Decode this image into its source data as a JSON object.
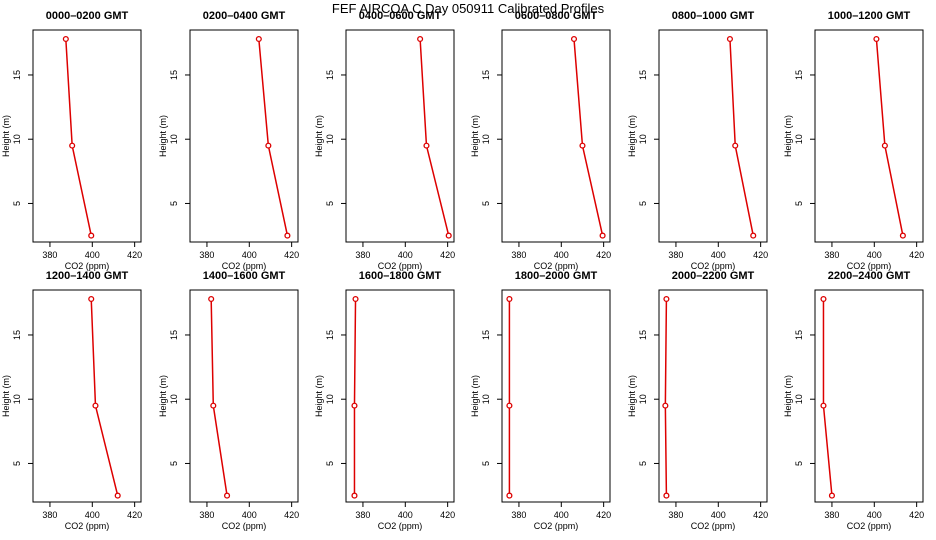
{
  "figure": {
    "title": "FEF AIRCOA C  Day 050911  Calibrated Profiles"
  },
  "style": {
    "line_color": "#dd0000",
    "marker_color": "#dd0000",
    "axis_color": "#000000"
  },
  "chart_data": [
    {
      "type": "line",
      "title": "0000–0200 GMT",
      "xlabel": "CO2 (ppm)",
      "ylabel": "Height (m)",
      "xlim": [
        372,
        423
      ],
      "ylim": [
        2,
        18.5
      ],
      "xticks": [
        380,
        400,
        420
      ],
      "yticks": [
        5,
        10,
        15
      ],
      "series": [
        {
          "x": [
            387.5,
            390.5,
            399.5
          ],
          "y": [
            17.8,
            9.5,
            2.5
          ]
        }
      ]
    },
    {
      "type": "line",
      "title": "0200–0400 GMT",
      "xlabel": "CO2 (ppm)",
      "ylabel": "Height (m)",
      "xlim": [
        372,
        423
      ],
      "ylim": [
        2,
        18.5
      ],
      "xticks": [
        380,
        400,
        420
      ],
      "yticks": [
        5,
        10,
        15
      ],
      "series": [
        {
          "x": [
            404.5,
            409,
            418
          ],
          "y": [
            17.8,
            9.5,
            2.5
          ]
        }
      ]
    },
    {
      "type": "line",
      "title": "0400–0600 GMT",
      "xlabel": "CO2 (ppm)",
      "ylabel": "Height (m)",
      "xlim": [
        372,
        423
      ],
      "ylim": [
        2,
        18.5
      ],
      "xticks": [
        380,
        400,
        420
      ],
      "yticks": [
        5,
        10,
        15
      ],
      "series": [
        {
          "x": [
            407,
            410,
            420.5
          ],
          "y": [
            17.8,
            9.5,
            2.5
          ]
        }
      ]
    },
    {
      "type": "line",
      "title": "0600–0800 GMT",
      "xlabel": "CO2 (ppm)",
      "ylabel": "Height (m)",
      "xlim": [
        372,
        423
      ],
      "ylim": [
        2,
        18.5
      ],
      "xticks": [
        380,
        400,
        420
      ],
      "yticks": [
        5,
        10,
        15
      ],
      "series": [
        {
          "x": [
            406,
            410,
            419.5
          ],
          "y": [
            17.8,
            9.5,
            2.5
          ]
        }
      ]
    },
    {
      "type": "line",
      "title": "0800–1000 GMT",
      "xlabel": "CO2 (ppm)",
      "ylabel": "Height (m)",
      "xlim": [
        372,
        423
      ],
      "ylim": [
        2,
        18.5
      ],
      "xticks": [
        380,
        400,
        420
      ],
      "yticks": [
        5,
        10,
        15
      ],
      "series": [
        {
          "x": [
            405.5,
            408,
            416.5
          ],
          "y": [
            17.8,
            9.5,
            2.5
          ]
        }
      ]
    },
    {
      "type": "line",
      "title": "1000–1200 GMT",
      "xlabel": "CO2 (ppm)",
      "ylabel": "Height (m)",
      "xlim": [
        372,
        423
      ],
      "ylim": [
        2,
        18.5
      ],
      "xticks": [
        380,
        400,
        420
      ],
      "yticks": [
        5,
        10,
        15
      ],
      "series": [
        {
          "x": [
            401,
            405,
            413.5
          ],
          "y": [
            17.8,
            9.5,
            2.5
          ]
        }
      ]
    },
    {
      "type": "line",
      "title": "1200–1400 GMT",
      "xlabel": "CO2 (ppm)",
      "ylabel": "Height (m)",
      "xlim": [
        372,
        423
      ],
      "ylim": [
        2,
        18.5
      ],
      "xticks": [
        380,
        400,
        420
      ],
      "yticks": [
        5,
        10,
        15
      ],
      "series": [
        {
          "x": [
            399.5,
            401.5,
            412
          ],
          "y": [
            17.8,
            9.5,
            2.5
          ]
        }
      ]
    },
    {
      "type": "line",
      "title": "1400–1600 GMT",
      "xlabel": "CO2 (ppm)",
      "ylabel": "Height (m)",
      "xlim": [
        372,
        423
      ],
      "ylim": [
        2,
        18.5
      ],
      "xticks": [
        380,
        400,
        420
      ],
      "yticks": [
        5,
        10,
        15
      ],
      "series": [
        {
          "x": [
            382,
            383,
            389.5
          ],
          "y": [
            17.8,
            9.5,
            2.5
          ]
        }
      ]
    },
    {
      "type": "line",
      "title": "1600–1800 GMT",
      "xlabel": "CO2 (ppm)",
      "ylabel": "Height (m)",
      "xlim": [
        372,
        423
      ],
      "ylim": [
        2,
        18.5
      ],
      "xticks": [
        380,
        400,
        420
      ],
      "yticks": [
        5,
        10,
        15
      ],
      "series": [
        {
          "x": [
            376.5,
            376,
            376
          ],
          "y": [
            17.8,
            9.5,
            2.5
          ]
        }
      ]
    },
    {
      "type": "line",
      "title": "1800–2000 GMT",
      "xlabel": "CO2 (ppm)",
      "ylabel": "Height (m)",
      "xlim": [
        372,
        423
      ],
      "ylim": [
        2,
        18.5
      ],
      "xticks": [
        380,
        400,
        420
      ],
      "yticks": [
        5,
        10,
        15
      ],
      "series": [
        {
          "x": [
            375.5,
            375.5,
            375.5
          ],
          "y": [
            17.8,
            9.5,
            2.5
          ]
        }
      ]
    },
    {
      "type": "line",
      "title": "2000–2200 GMT",
      "xlabel": "CO2 (ppm)",
      "ylabel": "Height (m)",
      "xlim": [
        372,
        423
      ],
      "ylim": [
        2,
        18.5
      ],
      "xticks": [
        380,
        400,
        420
      ],
      "yticks": [
        5,
        10,
        15
      ],
      "series": [
        {
          "x": [
            375.5,
            375,
            375.5
          ],
          "y": [
            17.8,
            9.5,
            2.5
          ]
        }
      ]
    },
    {
      "type": "line",
      "title": "2200–2400 GMT",
      "xlabel": "CO2 (ppm)",
      "ylabel": "Height (m)",
      "xlim": [
        372,
        423
      ],
      "ylim": [
        2,
        18.5
      ],
      "xticks": [
        380,
        400,
        420
      ],
      "yticks": [
        5,
        10,
        15
      ],
      "series": [
        {
          "x": [
            376,
            376,
            380
          ],
          "y": [
            17.8,
            9.5,
            2.5
          ]
        }
      ]
    }
  ]
}
